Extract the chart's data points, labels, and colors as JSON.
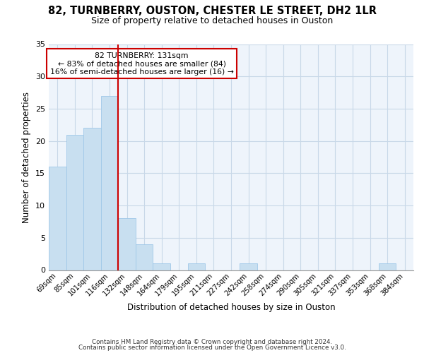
{
  "title": "82, TURNBERRY, OUSTON, CHESTER LE STREET, DH2 1LR",
  "subtitle": "Size of property relative to detached houses in Ouston",
  "xlabel": "Distribution of detached houses by size in Ouston",
  "ylabel": "Number of detached properties",
  "categories": [
    "69sqm",
    "85sqm",
    "101sqm",
    "116sqm",
    "132sqm",
    "148sqm",
    "164sqm",
    "179sqm",
    "195sqm",
    "211sqm",
    "227sqm",
    "242sqm",
    "258sqm",
    "274sqm",
    "290sqm",
    "305sqm",
    "321sqm",
    "337sqm",
    "353sqm",
    "368sqm",
    "384sqm"
  ],
  "values": [
    16,
    21,
    22,
    27,
    8,
    4,
    1,
    0,
    1,
    0,
    0,
    1,
    0,
    0,
    0,
    0,
    0,
    0,
    0,
    1,
    0
  ],
  "bar_color": "#c8dff0",
  "bar_edge_color": "#a0c8e8",
  "vline_color": "#cc0000",
  "vline_x_idx": 3.5,
  "annotation_text_line1": "82 TURNBERRY: 131sqm",
  "annotation_text_line2": "← 83% of detached houses are smaller (84)",
  "annotation_text_line3": "16% of semi-detached houses are larger (16) →",
  "annotation_box_edge_color": "#cc0000",
  "ylim": [
    0,
    35
  ],
  "yticks": [
    0,
    5,
    10,
    15,
    20,
    25,
    30,
    35
  ],
  "footnote1": "Contains HM Land Registry data © Crown copyright and database right 2024.",
  "footnote2": "Contains public sector information licensed under the Open Government Licence v3.0.",
  "background_color": "#ffffff",
  "plot_bg_color": "#eef4fb",
  "grid_color": "#c8d8e8"
}
